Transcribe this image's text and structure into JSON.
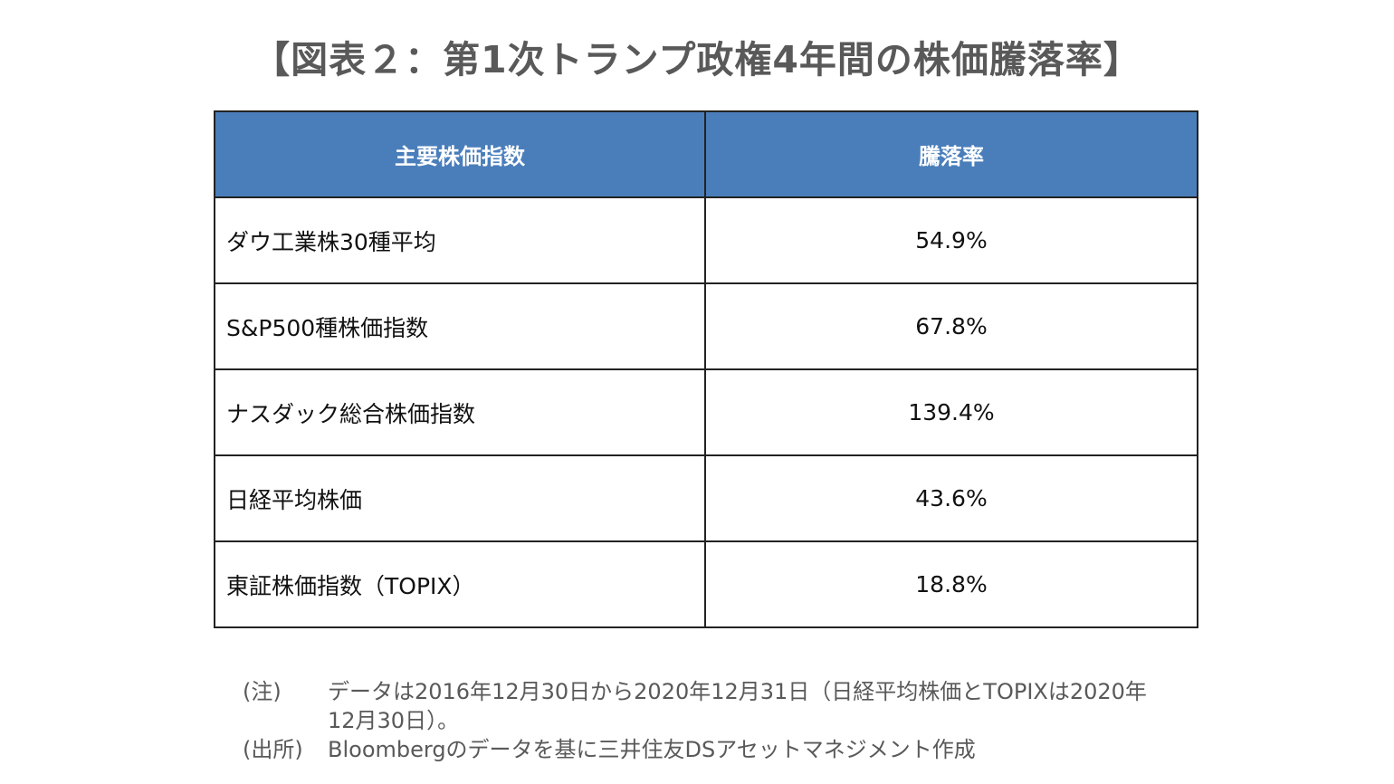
{
  "title": "【図表２：第1次トランプ政権4年間の株価騰落率】",
  "table": {
    "headers": [
      "主要株価指数",
      "騰落率"
    ],
    "rows": [
      {
        "name": "ダウ工業株30種平均",
        "value": "54.9%"
      },
      {
        "name": "S&P500種株価指数",
        "value": "67.8%"
      },
      {
        "name": "ナスダック総合株価指数",
        "value": "139.4%"
      },
      {
        "name": "日経平均株価",
        "value": "43.6%"
      },
      {
        "name": "東証株価指数（TOPIX）",
        "value": "18.8%"
      }
    ]
  },
  "notes": {
    "note_label": "(注)",
    "note_text": "データは2016年12月30日から2020年12月31日（日経平均株価とTOPIXは2020年12月30日）。",
    "source_label": "(出所)",
    "source_text": "Bloombergのデータを基に三井住友DSアセットマネジメント作成"
  },
  "colors": {
    "header_bg": "#4a7ebb",
    "header_text": "#ffffff",
    "title_text": "#595959",
    "border": "#222222"
  }
}
